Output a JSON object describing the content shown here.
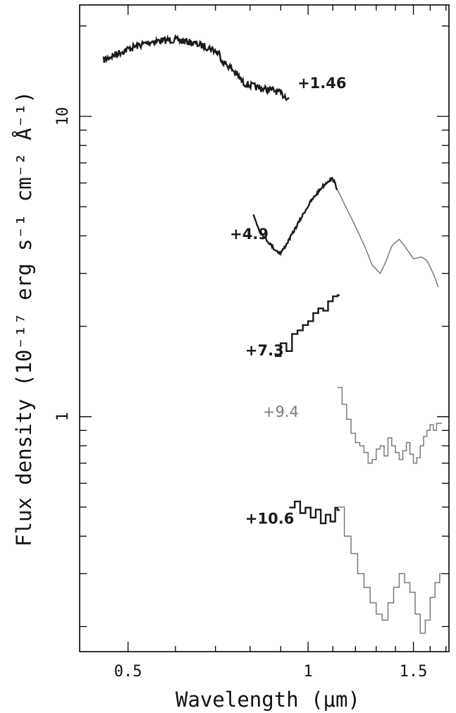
{
  "chart_data": {
    "type": "line",
    "title": "",
    "xlabel": "Wavelength (μm)",
    "ylabel": "Flux density (10⁻¹⁷ erg s⁻¹ cm⁻² Å⁻¹)",
    "x_scale": "log",
    "y_scale": "log",
    "xlim": [
      0.415,
      1.72
    ],
    "ylim": [
      0.165,
      23.5
    ],
    "x_tick_labels": [
      {
        "value": 0.5,
        "label": "0.5"
      },
      {
        "value": 1.0,
        "label": "1"
      },
      {
        "value": 1.5,
        "label": "1.5"
      }
    ],
    "y_tick_labels": [
      {
        "value": 1,
        "label": "1"
      },
      {
        "value": 10,
        "label": "10"
      }
    ],
    "legend": "none",
    "grid": false,
    "colors": {
      "optical": "#1a1a1a",
      "infrared": "#7a7a7a"
    },
    "series": [
      {
        "name": "+1.46",
        "color": "optical",
        "step": false,
        "noise": 0.45,
        "x": [
          0.455,
          0.48,
          0.51,
          0.55,
          0.6,
          0.63,
          0.66,
          0.69,
          0.71,
          0.72,
          0.74,
          0.76,
          0.78,
          0.81,
          0.83,
          0.85,
          0.88,
          0.9,
          0.93
        ],
        "y": [
          15.4,
          16.2,
          17.0,
          17.8,
          18.0,
          17.7,
          17.3,
          16.8,
          16.2,
          15.2,
          14.6,
          13.8,
          12.9,
          12.6,
          12.4,
          12.3,
          12.2,
          11.9,
          11.5
        ]
      },
      {
        "name": "+4.9",
        "color": "optical",
        "step": false,
        "noise": 0.2,
        "x": [
          0.81,
          0.83,
          0.86,
          0.88,
          0.9,
          0.92,
          0.95,
          0.98,
          1.01,
          1.05,
          1.08,
          1.1,
          1.12
        ],
        "y": [
          4.7,
          4.15,
          3.8,
          3.6,
          3.5,
          3.75,
          4.2,
          4.7,
          5.2,
          5.75,
          6.1,
          6.2,
          5.7
        ]
      },
      {
        "name": "+4.9",
        "color": "infrared",
        "step": false,
        "noise": 0.04,
        "x": [
          1.12,
          1.15,
          1.2,
          1.25,
          1.28,
          1.32,
          1.35,
          1.38,
          1.42,
          1.45,
          1.5,
          1.55,
          1.58,
          1.62,
          1.65
        ],
        "y": [
          5.7,
          5.1,
          4.3,
          3.6,
          3.2,
          3.0,
          3.3,
          3.7,
          3.9,
          3.7,
          3.35,
          3.4,
          3.3,
          3.0,
          2.7
        ]
      },
      {
        "name": "+7.3",
        "color": "optical",
        "step": true,
        "noise": 0.2,
        "x": [
          0.88,
          0.9,
          0.92,
          0.94,
          0.96,
          0.98,
          1.0,
          1.02,
          1.04,
          1.06,
          1.08,
          1.1,
          1.12
        ],
        "y": [
          1.6,
          1.75,
          1.65,
          1.9,
          1.95,
          2.0,
          2.1,
          2.2,
          2.3,
          2.25,
          2.4,
          2.5,
          2.55
        ]
      },
      {
        "name": "+9.4",
        "color": "infrared",
        "step": true,
        "noise": 0,
        "x": [
          1.12,
          1.14,
          1.16,
          1.18,
          1.2,
          1.22,
          1.24,
          1.26,
          1.28,
          1.3,
          1.32,
          1.34,
          1.36,
          1.38,
          1.4,
          1.42,
          1.44,
          1.46,
          1.48,
          1.5,
          1.52,
          1.54,
          1.56,
          1.58,
          1.6,
          1.62,
          1.64,
          1.66
        ],
        "y": [
          1.25,
          1.1,
          0.98,
          0.88,
          0.82,
          0.8,
          0.76,
          0.7,
          0.72,
          0.78,
          0.8,
          0.74,
          0.85,
          0.8,
          0.76,
          0.72,
          0.77,
          0.82,
          0.75,
          0.7,
          0.73,
          0.8,
          0.86,
          0.9,
          0.94,
          0.9,
          0.95,
          0.95
        ]
      },
      {
        "name": "+10.6",
        "color": "optical",
        "step": true,
        "noise": 0.15,
        "x": [
          0.93,
          0.95,
          0.97,
          0.99,
          1.01,
          1.03,
          1.05,
          1.07,
          1.09,
          1.11,
          1.12
        ],
        "y": [
          0.5,
          0.52,
          0.48,
          0.5,
          0.46,
          0.49,
          0.44,
          0.47,
          0.45,
          0.5,
          0.49
        ]
      },
      {
        "name": "+10.6",
        "color": "infrared",
        "step": true,
        "noise": 0,
        "x": [
          1.12,
          1.15,
          1.18,
          1.21,
          1.24,
          1.27,
          1.3,
          1.33,
          1.36,
          1.39,
          1.42,
          1.45,
          1.48,
          1.51,
          1.54,
          1.57,
          1.6,
          1.63,
          1.66
        ],
        "y": [
          0.5,
          0.4,
          0.35,
          0.3,
          0.27,
          0.24,
          0.22,
          0.21,
          0.24,
          0.27,
          0.3,
          0.28,
          0.26,
          0.22,
          0.19,
          0.21,
          0.25,
          0.28,
          0.3
        ]
      }
    ],
    "annotations": [
      {
        "text": "+1.46",
        "x": 0.96,
        "y": 12.4,
        "color": "optical"
      },
      {
        "text": "+4.9",
        "x": 0.74,
        "y": 3.9,
        "color": "optical"
      },
      {
        "text": "+7.3",
        "x": 0.785,
        "y": 1.6,
        "color": "optical"
      },
      {
        "text": "+9.4",
        "x": 0.84,
        "y": 1.0,
        "color": "infrared"
      },
      {
        "text": "+10.6",
        "x": 0.785,
        "y": 0.44,
        "color": "optical"
      }
    ]
  }
}
